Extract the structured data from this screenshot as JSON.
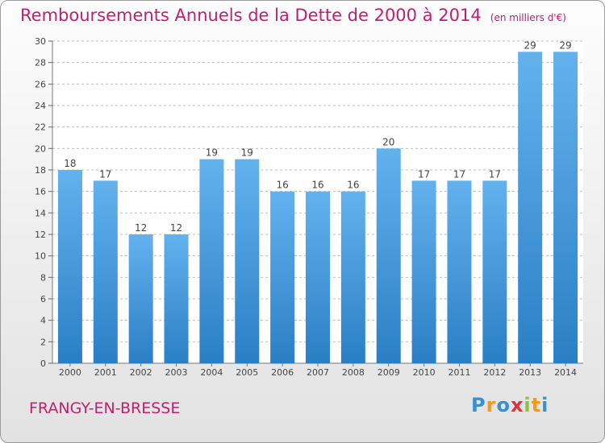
{
  "title": "Remboursements Annuels de la Dette de 2000 à 2014",
  "unit": "(en milliers d'€)",
  "commune": "FRANGY-EN-BRESSE",
  "logo": {
    "letters": [
      "P",
      "r",
      "o",
      "x",
      "i",
      "t",
      "i"
    ],
    "colors": [
      "#3a8fd0",
      "#f39a1e",
      "#3a8fd0",
      "#e0303b",
      "#8ac43f",
      "#f39a1e",
      "#3a8fd0"
    ]
  },
  "colors": {
    "bar_light": "#63b2ee",
    "bar_dark": "#2a7fc4",
    "title": "#c0206b",
    "grid": "#bdbdbd"
  },
  "chart_data": {
    "type": "bar",
    "categories": [
      "2000",
      "2001",
      "2002",
      "2003",
      "2004",
      "2005",
      "2006",
      "2007",
      "2008",
      "2009",
      "2010",
      "2011",
      "2012",
      "2013",
      "2014"
    ],
    "values": [
      18,
      17,
      12,
      12,
      19,
      19,
      16,
      16,
      16,
      20,
      17,
      17,
      17,
      29,
      29
    ],
    "ylim": [
      0,
      30
    ],
    "yticks": [
      0,
      2,
      4,
      6,
      8,
      10,
      12,
      14,
      16,
      18,
      20,
      22,
      24,
      26,
      28,
      30
    ],
    "grid": true,
    "xlabel": "",
    "ylabel": ""
  }
}
